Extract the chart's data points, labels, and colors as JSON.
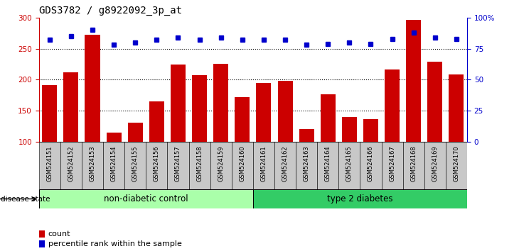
{
  "title": "GDS3782 / g8922092_3p_at",
  "samples": [
    "GSM524151",
    "GSM524152",
    "GSM524153",
    "GSM524154",
    "GSM524155",
    "GSM524156",
    "GSM524157",
    "GSM524158",
    "GSM524159",
    "GSM524160",
    "GSM524161",
    "GSM524162",
    "GSM524163",
    "GSM524164",
    "GSM524165",
    "GSM524166",
    "GSM524167",
    "GSM524168",
    "GSM524169",
    "GSM524170"
  ],
  "counts": [
    191,
    212,
    272,
    115,
    131,
    165,
    224,
    207,
    226,
    172,
    195,
    198,
    120,
    176,
    140,
    137,
    216,
    296,
    229,
    208
  ],
  "percentile_ranks": [
    82,
    85,
    90,
    78,
    80,
    82,
    84,
    82,
    84,
    82,
    82,
    82,
    78,
    79,
    80,
    79,
    83,
    88,
    84,
    83
  ],
  "non_diabetic_count": 10,
  "bar_color": "#cc0000",
  "dot_color": "#0000cc",
  "bg_color": "#ffffff",
  "label_bg": "#c8c8c8",
  "non_diabetic_bg": "#aaffaa",
  "diabetic_bg": "#33cc66",
  "ylim_left": [
    100,
    300
  ],
  "ylim_right": [
    0,
    100
  ],
  "yticks_left": [
    100,
    150,
    200,
    250,
    300
  ],
  "yticks_right": [
    0,
    25,
    50,
    75,
    100
  ],
  "ytick_right_labels": [
    "0",
    "25",
    "50",
    "75",
    "100%"
  ],
  "disease_label": "disease state",
  "group1_label": "non-diabetic control",
  "group2_label": "type 2 diabetes",
  "legend_count": "count",
  "legend_pct": "percentile rank within the sample",
  "bar_width": 0.7
}
